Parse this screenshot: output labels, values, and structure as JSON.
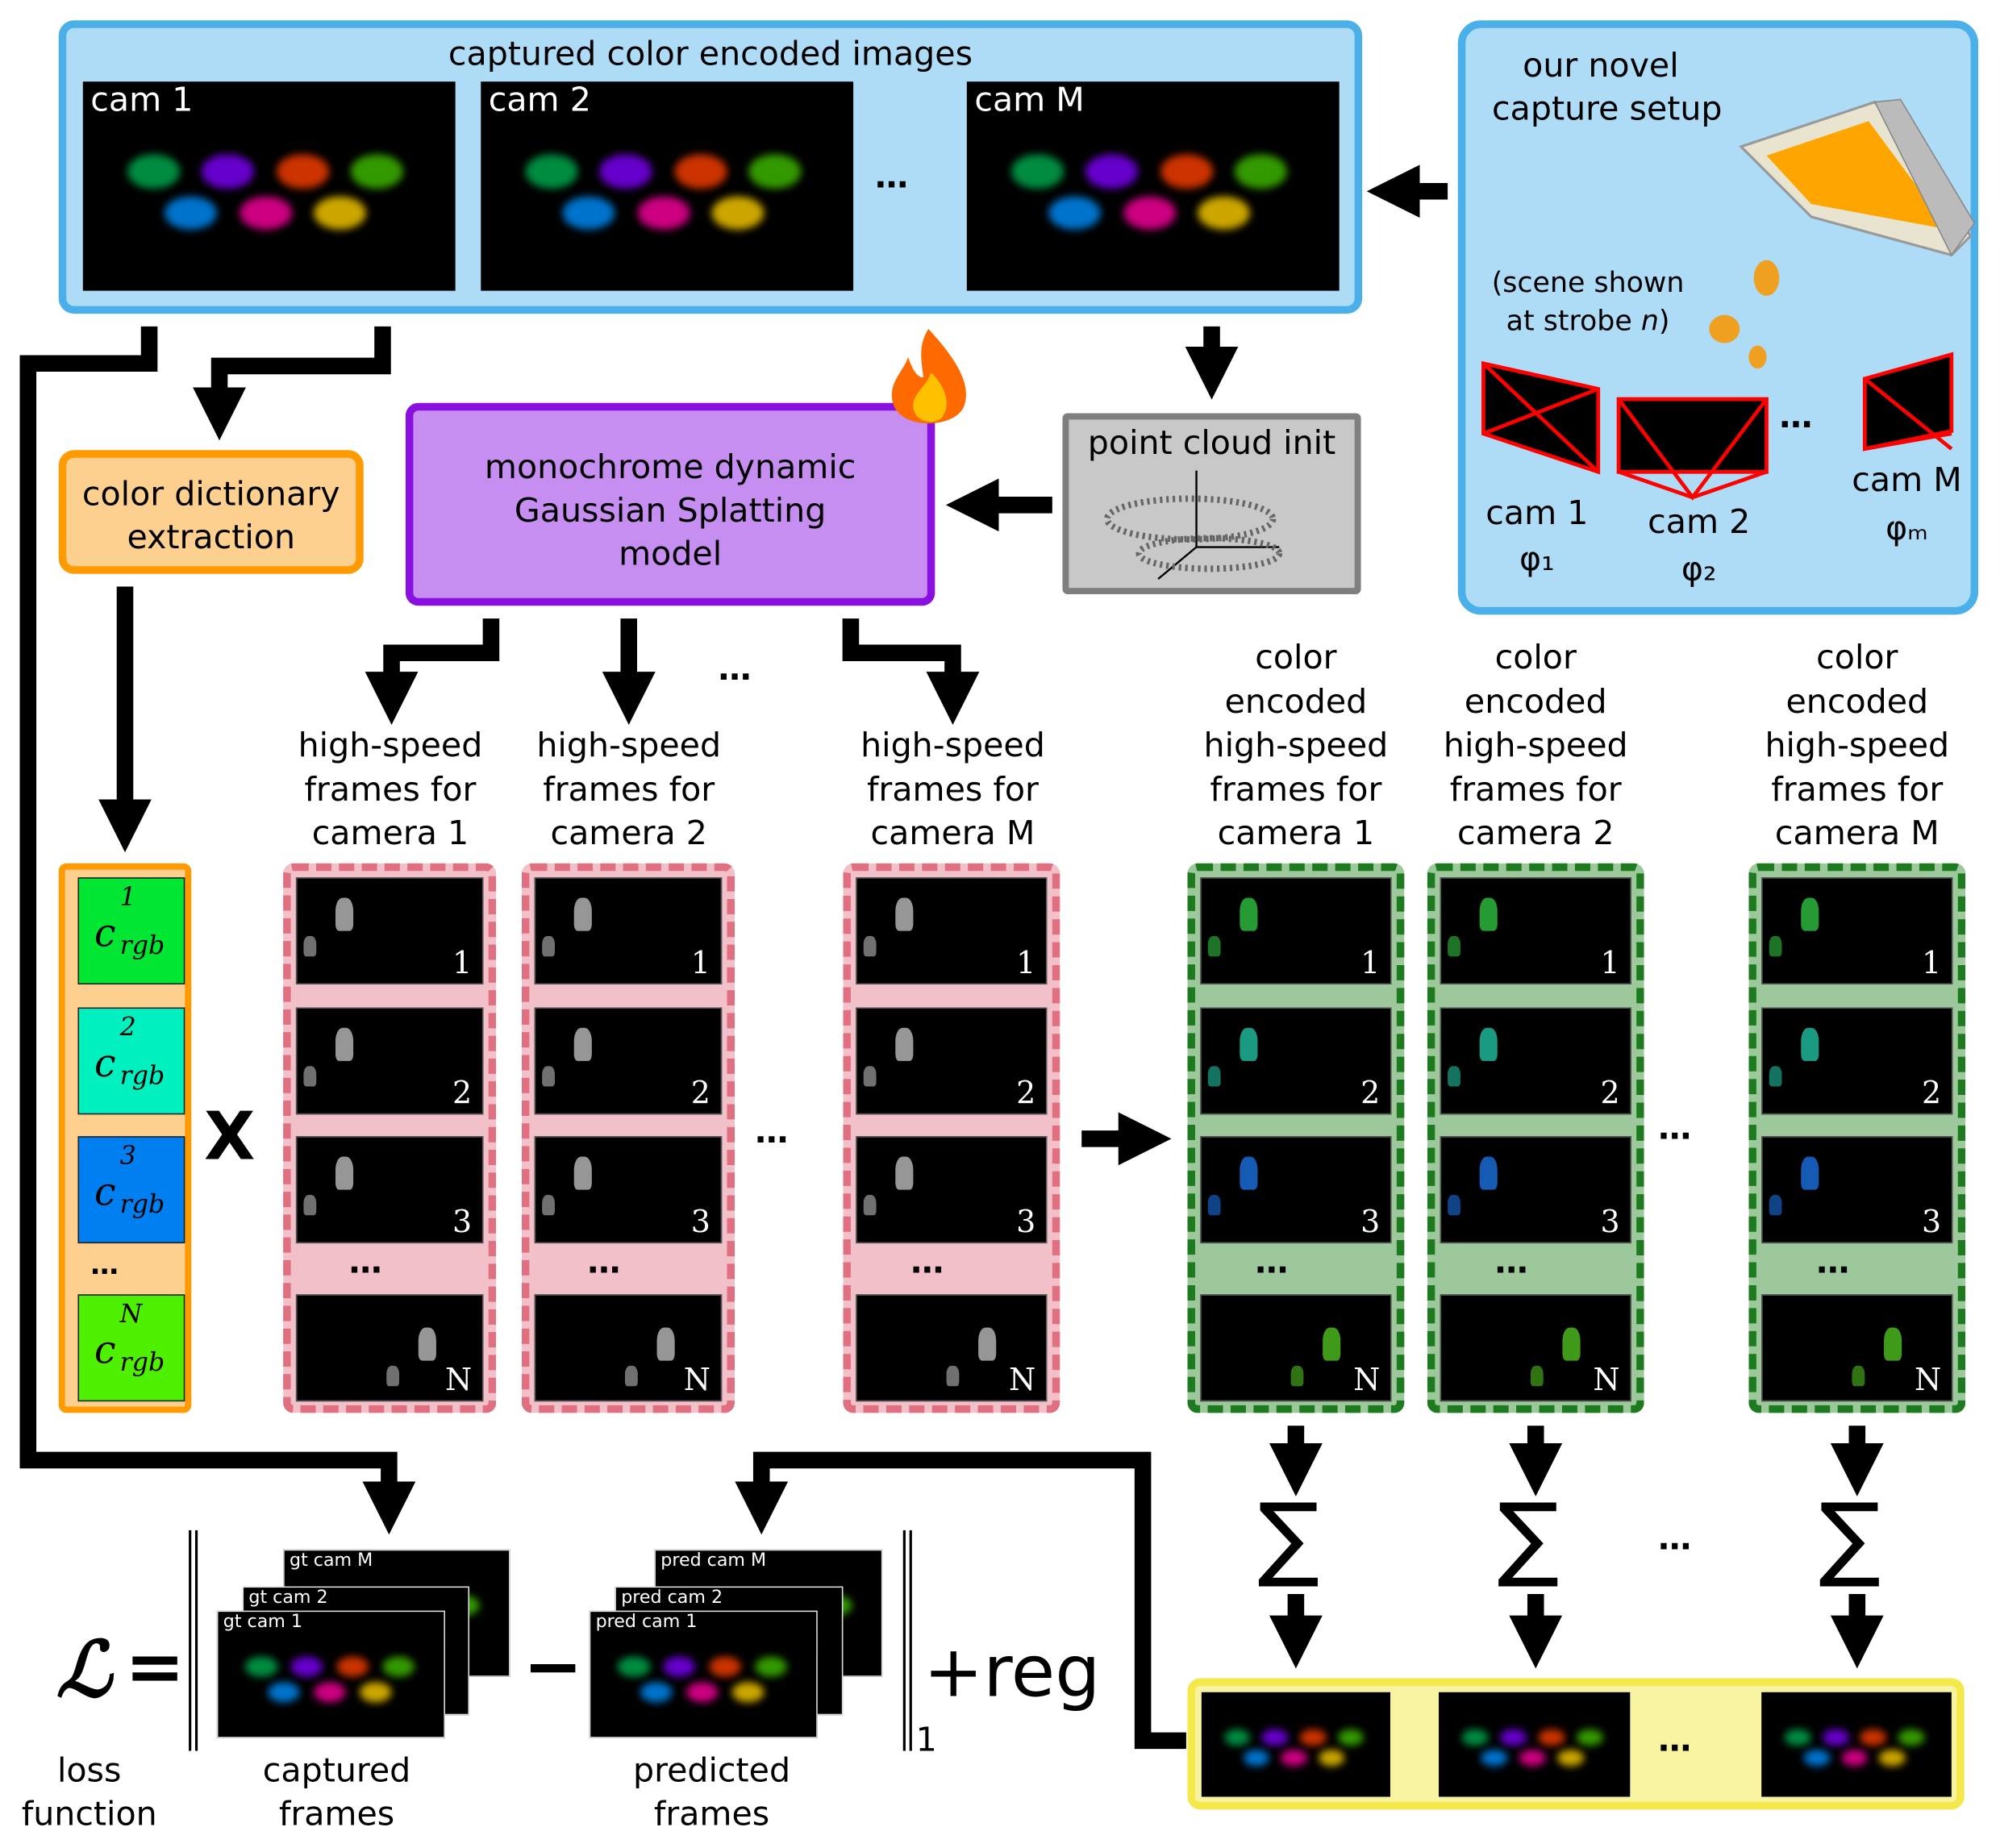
{
  "top_panel": {
    "title": "captured color encoded images",
    "cameras": [
      "cam 1",
      "cam 2",
      "cam M"
    ],
    "ellipsis": "…"
  },
  "setup_panel": {
    "title_line1": "our novel",
    "title_line2": "capture setup",
    "scene_line1": "(scene shown",
    "scene_line2_prefix": "at strobe ",
    "scene_line2_var": "n",
    "scene_line2_suffix": ")",
    "cameras": [
      {
        "name": "cam 1",
        "param": "φ₁"
      },
      {
        "name": "cam 2",
        "param": "φ₂"
      },
      {
        "name": "cam M",
        "param": "φₘ"
      }
    ],
    "ellipsis": "…",
    "colors": {
      "fill": "#aedbf5",
      "border": "#4bb0ea",
      "camera_frustum": "#ff0000",
      "light_panel": "#ffa500"
    }
  },
  "color_dictionary": {
    "label_line1": "color dictionary",
    "label_line2": "extraction",
    "entries": [
      {
        "sup": "1",
        "color": "#00e633"
      },
      {
        "sup": "2",
        "color": "#00f0c0"
      },
      {
        "sup": "3",
        "color": "#0080f0"
      },
      {
        "sup": "N",
        "color": "#4ef000"
      }
    ],
    "symbol": "c",
    "subscript": "rgb",
    "ellipsis": "…",
    "multiply": "X"
  },
  "model": {
    "label_line1": "monochrome dynamic",
    "label_line2": "Gaussian Splatting",
    "label_line3": "model",
    "icon": "flame-icon"
  },
  "point_cloud": {
    "label": "point cloud init"
  },
  "highspeed_columns": [
    {
      "line1": "high-speed",
      "line2": "frames for",
      "line3": "camera 1"
    },
    {
      "line1": "high-speed",
      "line2": "frames for",
      "line3": "camera 2"
    },
    {
      "line1": "high-speed",
      "line2": "frames for",
      "line3": "camera M"
    }
  ],
  "encoded_columns": [
    {
      "line1": "color",
      "line2": "encoded",
      "line3": "high-speed",
      "line4": "frames for",
      "line5": "camera 1"
    },
    {
      "line1": "color",
      "line2": "encoded",
      "line3": "high-speed",
      "line4": "frames for",
      "line5": "camera 2"
    },
    {
      "line1": "color",
      "line2": "encoded",
      "line3": "high-speed",
      "line4": "frames for",
      "line5": "camera M"
    }
  ],
  "frame_indices": [
    "1",
    "2",
    "3",
    "N"
  ],
  "sum_symbol": "∑",
  "ellipsis": "…",
  "loss": {
    "symbol": "ℒ",
    "equals": "=",
    "minus": "−",
    "norm_subscript": "1",
    "plus_reg": "+reg",
    "gt_labels": [
      "gt cam 1",
      "gt cam 2",
      "gt cam M"
    ],
    "pred_labels": [
      "pred cam 1",
      "pred cam 2",
      "pred cam M"
    ],
    "loss_label_line1": "loss",
    "loss_label_line2": "function",
    "captured_line1": "captured",
    "captured_line2": "frames",
    "predicted_line1": "predicted",
    "predicted_line2": "frames"
  },
  "colors": {
    "highspeed_fill": "#f2c0c8",
    "highspeed_border": "#e07080",
    "encoded_fill": "#9cc89c",
    "encoded_border": "#1e7a1e",
    "encoded_frame_tints": [
      "#30c040",
      "#20c0a0",
      "#1a70e0",
      "#50c020"
    ],
    "model_fill": "#c68ef0",
    "model_border": "#8a10e0",
    "dict_fill": "#fdd08f",
    "dict_border": "#ff9a00",
    "summed_fill": "#f7f3a0",
    "summed_border": "#f5e84a"
  }
}
